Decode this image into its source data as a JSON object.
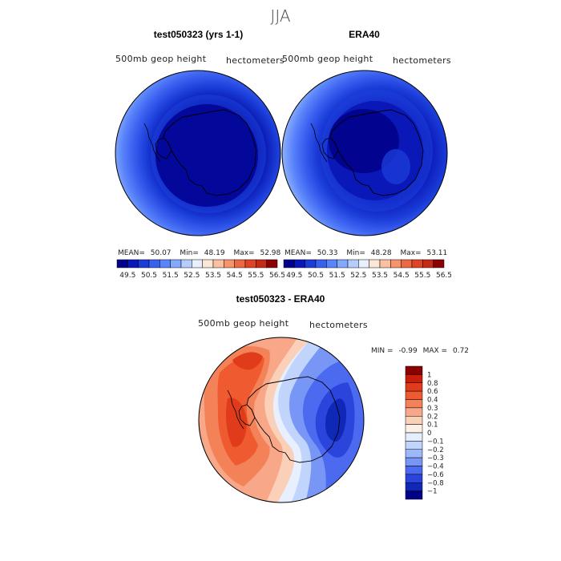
{
  "figure_title": "JJA",
  "chart_data": [
    {
      "type": "heatmap",
      "title": "test050323 (yrs 1-1)",
      "variable_label": "500mb geop height",
      "units_label": "hectometers",
      "stats": {
        "mean_label": "MEAN=",
        "mean": "50.07",
        "min_label": "Min=",
        "min": "48.19",
        "max_label": "Max=",
        "max": "52.98"
      },
      "colorbar": {
        "tick_labels": [
          "49.5",
          "50.5",
          "51.5",
          "52.5",
          "53.5",
          "54.5",
          "55.5",
          "56.5"
        ],
        "colors": [
          "#00008b",
          "#0a18b8",
          "#1a3cd8",
          "#3a60f0",
          "#5a84fa",
          "#84a8fc",
          "#b4ccfe",
          "#e8f0ff",
          "#fde6d6",
          "#fcbfa0",
          "#f6946c",
          "#ee6844",
          "#e04428",
          "#c42a16",
          "#8b0000"
        ]
      }
    },
    {
      "type": "heatmap",
      "title": "ERA40",
      "variable_label": "500mb geop height",
      "units_label": "hectometers",
      "stats": {
        "mean_label": "MEAN=",
        "mean": "50.33",
        "min_label": "Min=",
        "min": "48.28",
        "max_label": "Max=",
        "max": "53.11"
      },
      "colorbar": {
        "tick_labels": [
          "49.5",
          "50.5",
          "51.5",
          "52.5",
          "53.5",
          "54.5",
          "55.5",
          "56.5"
        ],
        "colors": [
          "#00008b",
          "#0a18b8",
          "#1a3cd8",
          "#3a60f0",
          "#5a84fa",
          "#84a8fc",
          "#b4ccfe",
          "#e8f0ff",
          "#fde6d6",
          "#fcbfa0",
          "#f6946c",
          "#ee6844",
          "#e04428",
          "#c42a16",
          "#8b0000"
        ]
      }
    },
    {
      "type": "heatmap",
      "title": "test050323 - ERA40",
      "variable_label": "500mb geop height",
      "units_label": "hectometers",
      "stats": {
        "min_label": "MIN =",
        "min": "-0.99",
        "max_label": "MAX =",
        "max": "0.72"
      },
      "colorbar": {
        "tick_labels": [
          "1",
          "0.8",
          "0.6",
          "0.4",
          "0.3",
          "0.2",
          "0.1",
          "0",
          "−0.1",
          "−0.2",
          "−0.3",
          "−0.4",
          "−0.6",
          "−0.8",
          "−1"
        ],
        "colors": [
          "#8b0000",
          "#c81e0a",
          "#e03c1c",
          "#f05a30",
          "#f48258",
          "#f8a888",
          "#fbd0b8",
          "#fdf0e6",
          "#e4eefe",
          "#c0d4fc",
          "#9cb8fa",
          "#7896f6",
          "#4c6af0",
          "#2a44dc",
          "#1028b8",
          "#00008b"
        ]
      }
    }
  ]
}
